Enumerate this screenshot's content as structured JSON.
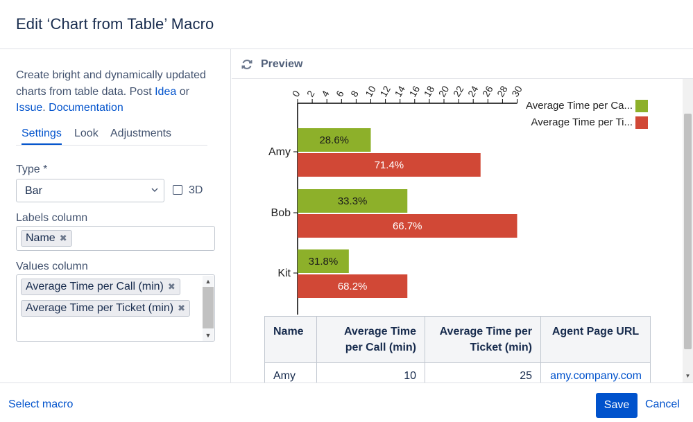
{
  "dialog": {
    "title": "Edit ‘Chart from Table’ Macro"
  },
  "sidebar": {
    "description_text": "Create bright and dynamically updated charts from table data. Post",
    "idea_link": "Idea",
    "or_text": "or",
    "issue_link": "Issue",
    "issue_suffix": ".",
    "documentation_link": "Documentation",
    "tabs": [
      {
        "label": "Settings",
        "active": true
      },
      {
        "label": "Look",
        "active": false
      },
      {
        "label": "Adjustments",
        "active": false
      }
    ],
    "type_label": "Type *",
    "type_value": "Bar",
    "three_d_label": "3D",
    "three_d_checked": false,
    "labels_column_label": "Labels column",
    "labels_column_values": [
      "Name"
    ],
    "values_column_label": "Values column",
    "values_column_values": [
      "Average Time per Call (min)",
      "Average Time per Ticket (min)"
    ]
  },
  "preview": {
    "title": "Preview",
    "table": {
      "headers": [
        "Name",
        "Average Time per Call (min)",
        "Average Time per Ticket (min)",
        "Agent Page URL"
      ],
      "rows": [
        [
          "Amy",
          "10",
          "25",
          "amy.company.com"
        ]
      ]
    }
  },
  "chart_data": {
    "type": "bar",
    "orientation": "horizontal",
    "categories": [
      "Amy",
      "Bob",
      "Kit"
    ],
    "series": [
      {
        "name": "Average Time per Ca...",
        "color": "#8db02a",
        "values": [
          10,
          15,
          7
        ],
        "labels": [
          "28.6%",
          "33.3%",
          "31.8%"
        ]
      },
      {
        "name": "Average Time per Ti...",
        "color": "#d14836",
        "values": [
          25,
          30,
          15
        ],
        "labels": [
          "71.4%",
          "66.7%",
          "68.2%"
        ]
      }
    ],
    "x_ticks": [
      0,
      2,
      4,
      6,
      8,
      10,
      12,
      14,
      16,
      18,
      20,
      22,
      24,
      26,
      28,
      30
    ],
    "xlim": [
      0,
      30
    ],
    "legend_position": "top-right",
    "grid": false
  },
  "footer": {
    "select_macro": "Select macro",
    "save": "Save",
    "cancel": "Cancel"
  }
}
